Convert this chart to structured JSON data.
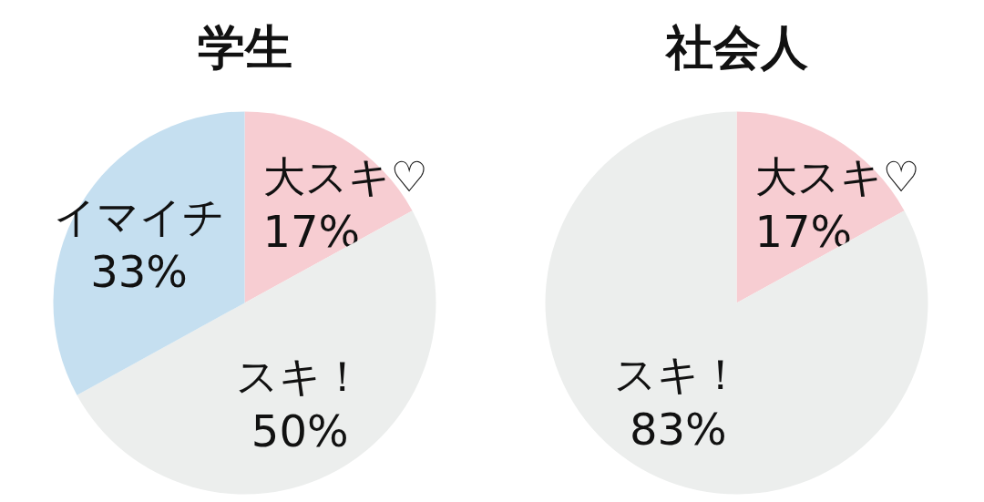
{
  "chart_data": [
    {
      "type": "pie",
      "title": "学生",
      "categories": [
        "大スキ♡",
        "スキ！",
        "イマイチ"
      ],
      "values": [
        17,
        50,
        33
      ],
      "value_labels": [
        "17%",
        "50%",
        "33%"
      ],
      "colors": [
        "#f7cdd2",
        "#eceeed",
        "#c5dff0"
      ]
    },
    {
      "type": "pie",
      "title": "社会人",
      "categories": [
        "大スキ♡",
        "スキ！"
      ],
      "values": [
        17,
        83
      ],
      "value_labels": [
        "17%",
        "83%"
      ],
      "colors": [
        "#f7cdd2",
        "#eceeed"
      ]
    }
  ]
}
